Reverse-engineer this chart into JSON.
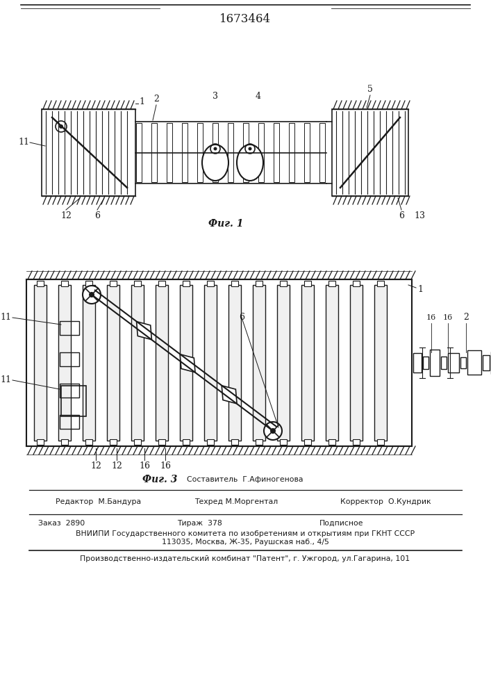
{
  "patent_number": "1673464",
  "fig1_caption": "Фиг. 1",
  "fig3_caption": "Фиг. 3",
  "editor_label": "Редактор  М.Бандура",
  "composer_label": "Составитель  Г.Афиногенова",
  "techred_label": "Техред М.Моргентал",
  "corrector_label": "Корректор  О.Кундрик",
  "order_text": "Заказ  2890",
  "tirazh_text": "Тираж  378",
  "podpisnoe_text": "Подписное",
  "vniipи_line": "ВНИИПИ Государственного комитета по изобретениям и открытиям при ГКНТ СССР",
  "address_line": "113035, Москва, Ж-35, Раушская наб., 4/5",
  "publisher_line": "Производственно-издательский комбинат \"Патент\", г. Ужгород, ул.Гагарина, 101",
  "bg_color": "#ffffff",
  "line_color": "#1a1a1a"
}
